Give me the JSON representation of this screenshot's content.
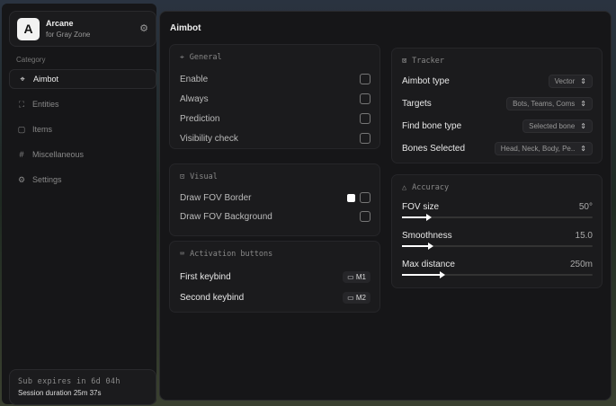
{
  "brand": {
    "logo": "A",
    "name": "Arcane",
    "subtitle": "for Gray Zone"
  },
  "sidebar": {
    "category_label": "Category",
    "items": [
      {
        "label": "Aimbot",
        "icon": "crosshair-icon",
        "active": true
      },
      {
        "label": "Entities",
        "icon": "scan-face-icon"
      },
      {
        "label": "Items",
        "icon": "box-icon"
      },
      {
        "label": "Miscellaneous",
        "icon": "grid-icon"
      },
      {
        "label": "Settings",
        "icon": "gear-icon"
      }
    ]
  },
  "subscription": {
    "expires": "Sub expires in 6d 04h",
    "session": "Session duration 25m 37s"
  },
  "main": {
    "title": "Aimbot",
    "general": {
      "title": "General",
      "items": [
        "Enable",
        "Always",
        "Prediction",
        "Visibility check"
      ]
    },
    "visual": {
      "title": "Visual",
      "items": [
        "Draw FOV Border",
        "Draw FOV Background"
      ]
    },
    "activation": {
      "title": "Activation buttons",
      "items": [
        {
          "label": "First keybind",
          "key": "M1"
        },
        {
          "label": "Second keybind",
          "key": "M2"
        }
      ]
    },
    "tracker": {
      "title": "Tracker",
      "items": [
        {
          "label": "Aimbot type",
          "value": "Vector"
        },
        {
          "label": "Targets",
          "value": "Bots, Teams, Coms"
        },
        {
          "label": "Find bone type",
          "value": "Selected bone"
        },
        {
          "label": "Bones Selected",
          "value": "Head, Neck, Body, Pe.."
        }
      ]
    },
    "accuracy": {
      "title": "Accuracy",
      "items": [
        {
          "label": "FOV size",
          "value": "50°",
          "percent": 14
        },
        {
          "label": "Smoothness",
          "value": "15.0",
          "percent": 15
        },
        {
          "label": "Max distance",
          "value": "250m",
          "percent": 21
        }
      ]
    }
  },
  "colors": {
    "accent": "#ffffff",
    "panel": "#161618",
    "card": "#1b1b1d"
  }
}
